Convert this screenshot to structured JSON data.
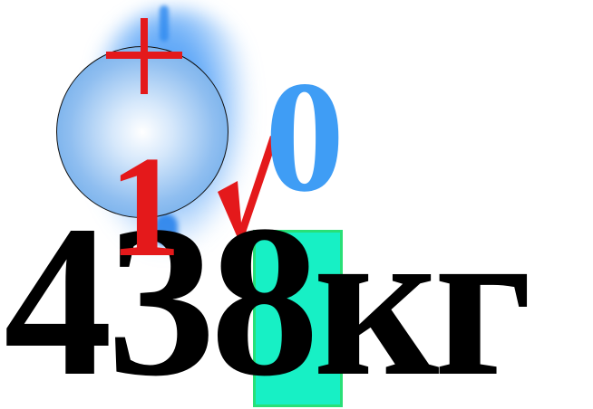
{
  "marks": {
    "plus_sign": "+",
    "zero_digit": "0",
    "one_digit": "1"
  },
  "answer": {
    "value_prefix": "43",
    "highlighted_digit": "8",
    "unit": "кг"
  },
  "colors": {
    "ball_blue": "#5aa0e6",
    "glow_blue": "#2d8cf5",
    "zero_blue": "#3f9df5",
    "mark_red": "#e4191b",
    "highlight_teal": "#17f0c5",
    "text_black": "#000000"
  },
  "icons": {
    "ball": "glossy-blue-ball-icon",
    "plus": "plus-icon",
    "check": "checkmark-icon"
  }
}
